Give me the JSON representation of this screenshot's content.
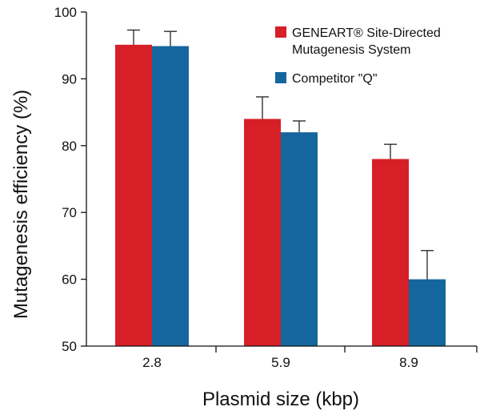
{
  "chart_data": {
    "type": "bar",
    "categories": [
      "2.8",
      "5.9",
      "8.9"
    ],
    "series": [
      {
        "name": "GENEART® Site-Directed Mutagenesis System",
        "name_lines": [
          "GENEART® Site-Directed",
          "Mutagenesis System"
        ],
        "values": [
          95.1,
          84.0,
          78.0
        ],
        "error": [
          2.2,
          3.3,
          2.2
        ],
        "color": "#d71f27"
      },
      {
        "name": "Competitor \"Q\"",
        "name_lines": [
          "Competitor \"Q\""
        ],
        "values": [
          94.9,
          82.0,
          60.0
        ],
        "error": [
          2.2,
          1.7,
          4.3
        ],
        "color": "#15669e"
      }
    ],
    "xlabel": "Plasmid size (kbp)",
    "ylabel": "Mutagenesis efficiency (%)",
    "ylim": [
      50,
      100
    ],
    "yticks": [
      "50",
      "60",
      "70",
      "80",
      "90",
      "100"
    ],
    "grid": false,
    "legend_position": "top-right"
  }
}
